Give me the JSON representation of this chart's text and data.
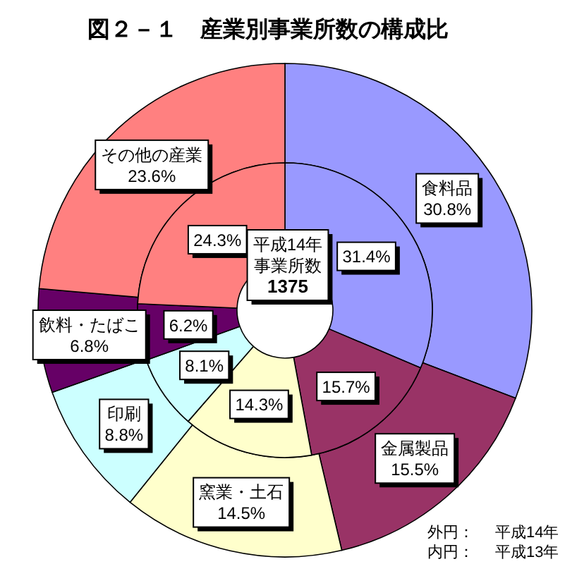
{
  "chart_data": {
    "type": "donut",
    "title": "図２－１　産業別事業所数の構成比",
    "categories": [
      "食料品",
      "金属製品",
      "窯業・土石",
      "印刷",
      "飲料・たばこ",
      "その他の産業"
    ],
    "colors": [
      "#9999ff",
      "#993366",
      "#ffffcc",
      "#ccffff",
      "#660066",
      "#ff8080"
    ],
    "series": [
      {
        "values": [
          30.8,
          15.5,
          14.5,
          8.8,
          6.8,
          23.6
        ],
        "value_labels": [
          "30.8%",
          "15.5%",
          "14.5%",
          "8.8%",
          "6.8%",
          "23.6%"
        ]
      },
      {
        "values": [
          31.4,
          15.7,
          14.3,
          8.1,
          6.2,
          24.3
        ],
        "value_labels": [
          "31.4%",
          "15.7%",
          "14.3%",
          "8.1%",
          "6.2%",
          "24.3%"
        ]
      }
    ],
    "annotations": [
      "平成14年事業所数",
      "1375",
      "外円：　平成14年",
      "内円：　平成13年"
    ]
  }
}
